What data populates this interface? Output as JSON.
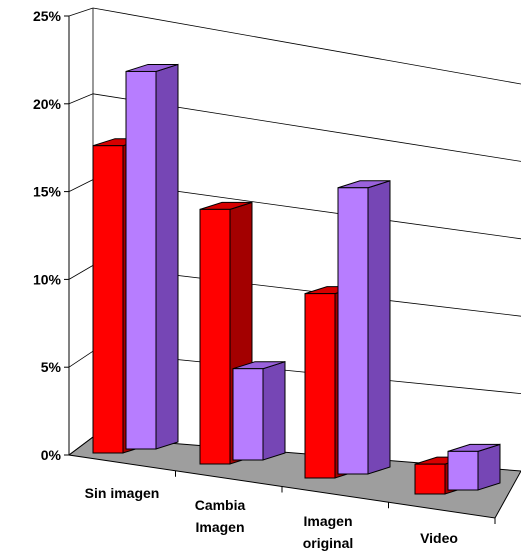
{
  "chart_data": {
    "type": "bar",
    "categories": [
      [
        "Sin imagen"
      ],
      [
        "Cambia",
        "Imagen"
      ],
      [
        "Imagen",
        "original"
      ],
      [
        "Video"
      ]
    ],
    "series": [
      {
        "values": [
          17.5,
          14.5,
          10.5,
          1.7
        ]
      },
      {
        "values": [
          21.5,
          5.2,
          16.3,
          2.2
        ]
      }
    ],
    "ylim": [
      0,
      25
    ],
    "yticks": [
      "0%",
      "5%",
      "10%",
      "15%",
      "20%",
      "25%"
    ],
    "grid": true
  },
  "colors": {
    "series": [
      {
        "front": "#ff0000",
        "side": "#a30000",
        "top": "#d60000"
      },
      {
        "front": "#b77dff",
        "side": "#7646b5",
        "top": "#9a62dc"
      }
    ],
    "floor": "#9e9e9e",
    "grid": "#000000"
  }
}
